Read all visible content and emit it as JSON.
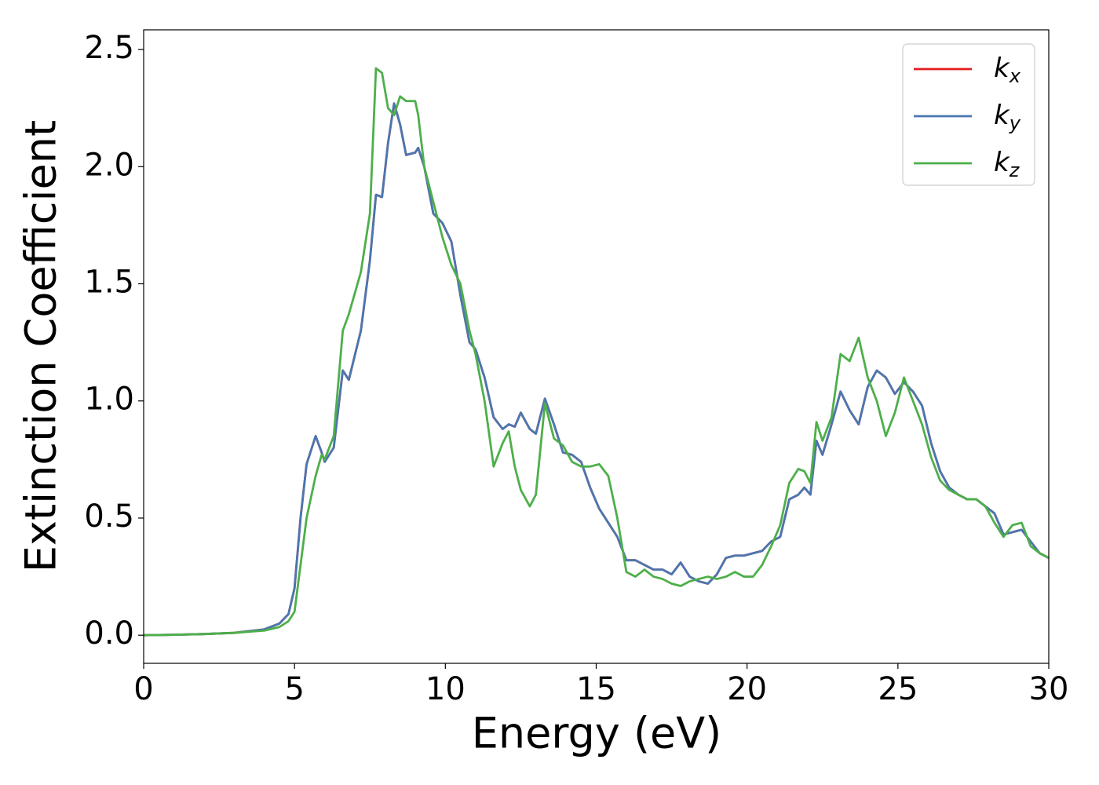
{
  "chart_data": {
    "type": "line",
    "xlabel": "Energy (eV)",
    "ylabel": "Extinction Coefficient",
    "x": [
      0,
      1,
      2,
      3,
      4,
      4.5,
      4.8,
      5,
      5.2,
      5.4,
      5.7,
      5.9,
      6.0,
      6.3,
      6.6,
      6.8,
      7.2,
      7.5,
      7.7,
      7.9,
      8.1,
      8.3,
      8.5,
      8.7,
      9.0,
      9.1,
      9.3,
      9.6,
      9.9,
      10.2,
      10.5,
      10.8,
      11.0,
      11.3,
      11.6,
      11.9,
      12.1,
      12.3,
      12.5,
      12.8,
      13.0,
      13.3,
      13.6,
      13.9,
      14.2,
      14.5,
      14.8,
      15.1,
      15.4,
      15.7,
      16.0,
      16.3,
      16.6,
      16.9,
      17.2,
      17.5,
      17.8,
      18.1,
      18.4,
      18.7,
      19.0,
      19.3,
      19.6,
      19.9,
      20.2,
      20.5,
      20.8,
      21.1,
      21.4,
      21.7,
      21.9,
      22.1,
      22.3,
      22.5,
      22.8,
      23.1,
      23.4,
      23.7,
      24.0,
      24.3,
      24.6,
      24.9,
      25.2,
      25.5,
      25.8,
      26.1,
      26.4,
      26.7,
      27.0,
      27.3,
      27.6,
      27.9,
      28.2,
      28.5,
      28.8,
      29.1,
      29.4,
      29.7,
      30.0
    ],
    "series": [
      {
        "name": "kx",
        "color": "#e41a1c",
        "values": [
          0,
          0.002,
          0.005,
          0.01,
          0.025,
          0.05,
          0.09,
          0.2,
          0.5,
          0.73,
          0.85,
          0.78,
          0.74,
          0.8,
          1.13,
          1.09,
          1.3,
          1.6,
          1.88,
          1.87,
          2.1,
          2.27,
          2.18,
          2.05,
          2.06,
          2.08,
          2.0,
          1.8,
          1.76,
          1.68,
          1.45,
          1.25,
          1.22,
          1.1,
          0.93,
          0.88,
          0.9,
          0.89,
          0.95,
          0.88,
          0.86,
          1.01,
          0.9,
          0.78,
          0.77,
          0.74,
          0.63,
          0.54,
          0.48,
          0.42,
          0.32,
          0.32,
          0.3,
          0.28,
          0.28,
          0.26,
          0.31,
          0.25,
          0.23,
          0.22,
          0.26,
          0.33,
          0.34,
          0.34,
          0.35,
          0.36,
          0.4,
          0.42,
          0.58,
          0.6,
          0.63,
          0.6,
          0.83,
          0.77,
          0.9,
          1.04,
          0.96,
          0.9,
          1.06,
          1.13,
          1.1,
          1.03,
          1.08,
          1.04,
          0.98,
          0.82,
          0.7,
          0.63,
          0.6,
          0.58,
          0.58,
          0.55,
          0.52,
          0.43,
          0.44,
          0.45,
          0.4,
          0.35,
          0.33
        ]
      },
      {
        "name": "ky",
        "color": "#4a77b0",
        "values": [
          0,
          0.002,
          0.005,
          0.01,
          0.025,
          0.05,
          0.09,
          0.2,
          0.5,
          0.73,
          0.85,
          0.78,
          0.74,
          0.8,
          1.13,
          1.09,
          1.3,
          1.6,
          1.88,
          1.87,
          2.1,
          2.27,
          2.18,
          2.05,
          2.06,
          2.08,
          2.0,
          1.8,
          1.76,
          1.68,
          1.45,
          1.25,
          1.22,
          1.1,
          0.93,
          0.88,
          0.9,
          0.89,
          0.95,
          0.88,
          0.86,
          1.01,
          0.9,
          0.78,
          0.77,
          0.74,
          0.63,
          0.54,
          0.48,
          0.42,
          0.32,
          0.32,
          0.3,
          0.28,
          0.28,
          0.26,
          0.31,
          0.25,
          0.23,
          0.22,
          0.26,
          0.33,
          0.34,
          0.34,
          0.35,
          0.36,
          0.4,
          0.42,
          0.58,
          0.6,
          0.63,
          0.6,
          0.83,
          0.77,
          0.9,
          1.04,
          0.96,
          0.9,
          1.06,
          1.13,
          1.1,
          1.03,
          1.08,
          1.04,
          0.98,
          0.82,
          0.7,
          0.63,
          0.6,
          0.58,
          0.58,
          0.55,
          0.52,
          0.43,
          0.44,
          0.45,
          0.4,
          0.35,
          0.33
        ]
      },
      {
        "name": "kz",
        "color": "#4daf4a",
        "values": [
          0,
          0.002,
          0.005,
          0.01,
          0.02,
          0.035,
          0.06,
          0.1,
          0.3,
          0.5,
          0.68,
          0.77,
          0.75,
          0.85,
          1.3,
          1.37,
          1.55,
          1.8,
          2.42,
          2.4,
          2.25,
          2.22,
          2.3,
          2.28,
          2.28,
          2.22,
          2.0,
          1.85,
          1.7,
          1.58,
          1.5,
          1.3,
          1.2,
          1.0,
          0.72,
          0.82,
          0.87,
          0.72,
          0.62,
          0.55,
          0.6,
          0.99,
          0.84,
          0.81,
          0.74,
          0.72,
          0.72,
          0.73,
          0.68,
          0.5,
          0.27,
          0.25,
          0.28,
          0.25,
          0.24,
          0.22,
          0.21,
          0.23,
          0.24,
          0.25,
          0.24,
          0.25,
          0.27,
          0.25,
          0.25,
          0.3,
          0.38,
          0.47,
          0.65,
          0.71,
          0.7,
          0.65,
          0.91,
          0.83,
          0.93,
          1.2,
          1.17,
          1.27,
          1.1,
          1.0,
          0.85,
          0.95,
          1.1,
          1.0,
          0.9,
          0.76,
          0.66,
          0.62,
          0.6,
          0.58,
          0.58,
          0.55,
          0.48,
          0.42,
          0.47,
          0.48,
          0.38,
          0.35,
          0.33
        ]
      }
    ],
    "xlim": [
      0,
      30
    ],
    "xticks": [
      0,
      5,
      10,
      15,
      20,
      25,
      30
    ],
    "ylim": [
      -0.12,
      2.584
    ],
    "yticks": [
      {
        "value": 0,
        "label": "0.0"
      },
      0.5,
      {
        "value": 1,
        "label": "1.0"
      },
      1.5,
      {
        "value": 2,
        "label": "2.0"
      },
      2.5
    ],
    "legend": "upper right"
  }
}
